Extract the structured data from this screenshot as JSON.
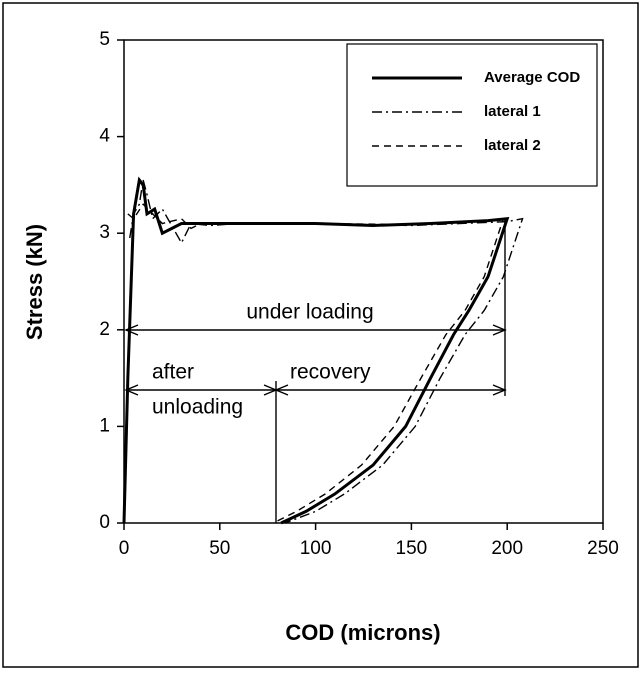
{
  "chart_data": {
    "type": "line",
    "xlabel": "COD (microns)",
    "ylabel": "Stress (kN)",
    "xlim": [
      0,
      250
    ],
    "ylim": [
      0,
      5
    ],
    "xticks": [
      0,
      50,
      100,
      150,
      200,
      250
    ],
    "yticks": [
      0,
      1,
      2,
      3,
      4,
      5
    ],
    "annotations": [
      "under loading",
      "after",
      "unloading",
      "recovery"
    ],
    "series": [
      {
        "name": "Average COD",
        "color": "#000000",
        "style": "solid",
        "x": [
          0,
          2,
          5,
          8,
          10,
          12,
          16,
          20,
          25,
          30,
          40,
          60,
          100,
          130,
          160,
          190,
          200,
          190,
          180,
          172,
          160,
          147,
          130,
          110,
          95,
          82
        ],
        "values": [
          0,
          1.5,
          3.2,
          3.55,
          3.5,
          3.2,
          3.25,
          3.0,
          3.05,
          3.1,
          3.1,
          3.1,
          3.1,
          3.08,
          3.1,
          3.13,
          3.15,
          2.55,
          2.2,
          1.95,
          1.5,
          1.0,
          0.6,
          0.3,
          0.12,
          0
        ]
      },
      {
        "name": "lateral 1",
        "color": "#000000",
        "style": "dashdot",
        "x": [
          3,
          5,
          8,
          10,
          12,
          15,
          20,
          30,
          35,
          45,
          60,
          100,
          150,
          200,
          208,
          198,
          188,
          178,
          165,
          152,
          135,
          115,
          100,
          84
        ],
        "values": [
          2.95,
          3.2,
          3.3,
          3.55,
          3.4,
          3.15,
          3.25,
          2.9,
          3.1,
          3.08,
          3.1,
          3.1,
          3.08,
          3.12,
          3.15,
          2.55,
          2.2,
          1.95,
          1.5,
          1.0,
          0.6,
          0.3,
          0.12,
          0
        ]
      },
      {
        "name": "lateral 2",
        "color": "#000000",
        "style": "dashed",
        "x": [
          2,
          5,
          10,
          15,
          20,
          30,
          35,
          40,
          60,
          100,
          150,
          190,
          198,
          188,
          178,
          168,
          155,
          141,
          124,
          105,
          90,
          78
        ],
        "values": [
          3.2,
          3.15,
          3.3,
          3.2,
          3.1,
          3.15,
          3.05,
          3.1,
          3.1,
          3.1,
          3.09,
          3.13,
          3.15,
          2.55,
          2.2,
          1.95,
          1.5,
          1.0,
          0.6,
          0.3,
          0.12,
          0
        ]
      }
    ]
  }
}
